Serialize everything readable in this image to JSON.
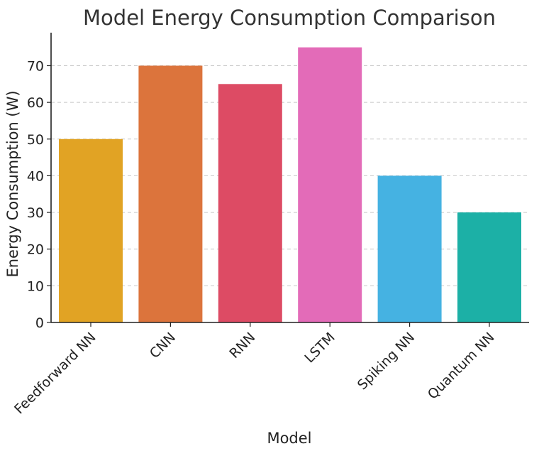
{
  "chart_data": {
    "type": "bar",
    "title": "Model Energy Consumption Comparison",
    "xlabel": "Model",
    "ylabel": "Energy Consumption (W)",
    "categories": [
      "Feedforward NN",
      "CNN",
      "RNN",
      "LSTM",
      "Spiking NN",
      "Quantum NN"
    ],
    "values": [
      50,
      70,
      65,
      75,
      40,
      30
    ],
    "colors": [
      "#E1A324",
      "#DC743C",
      "#DD4B64",
      "#E36BB8",
      "#45B2E2",
      "#1CB0A6"
    ],
    "ylim": [
      0,
      79
    ],
    "yticks": [
      0,
      10,
      20,
      30,
      40,
      50,
      60,
      70
    ],
    "grid": true,
    "grid_axis": "y"
  }
}
